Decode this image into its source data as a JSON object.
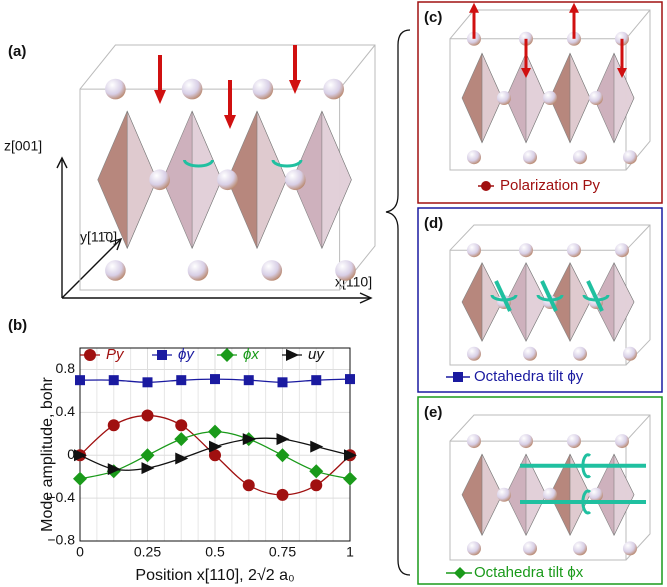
{
  "panels": {
    "a": "(a)",
    "b": "(b)",
    "c": "(c)",
    "d": "(d)",
    "e": "(e)"
  },
  "axes_3d": {
    "z": "z[001]",
    "y": "y[11̄0]",
    "x": "x[110]"
  },
  "captions": {
    "c": "Polarization Py",
    "d": "Octahedra tilt ϕy",
    "e": "Octahedra tilt ϕx"
  },
  "chart_data": {
    "type": "line",
    "xlabel": "Position x[110], 2√2 a₀",
    "ylabel": "Mode amplitude, bohr",
    "x": [
      0,
      0.125,
      0.25,
      0.375,
      0.5,
      0.625,
      0.75,
      0.875,
      1
    ],
    "xlim": [
      0,
      1
    ],
    "xticks": [
      0,
      0.25,
      0.5,
      0.75,
      1
    ],
    "ylim": [
      -0.8,
      1
    ],
    "yticks": [
      {
        "value": -0.8,
        "label": "−0.8"
      },
      {
        "value": -0.4,
        "label": "−0.4"
      },
      0,
      0.4,
      0.8
    ],
    "grid": true,
    "series": [
      {
        "name": "Py",
        "color": "#a01010",
        "marker": "circle",
        "values": [
          0,
          0.28,
          0.37,
          0.28,
          0,
          -0.28,
          -0.37,
          -0.28,
          0
        ]
      },
      {
        "name": "ϕy",
        "color": "#1a1aa0",
        "marker": "square",
        "values": [
          0.7,
          0.7,
          0.68,
          0.7,
          0.71,
          0.7,
          0.68,
          0.7,
          0.71
        ]
      },
      {
        "name": "ϕx",
        "color": "#1a9a1a",
        "marker": "diamond",
        "values": [
          -0.22,
          -0.15,
          0,
          0.15,
          0.22,
          0.15,
          0,
          -0.15,
          -0.22
        ]
      },
      {
        "name": "uy",
        "color": "#111111",
        "marker": "triangle",
        "values": [
          0,
          -0.13,
          -0.12,
          -0.03,
          0.08,
          0.15,
          0.15,
          0.08,
          0
        ]
      }
    ]
  }
}
